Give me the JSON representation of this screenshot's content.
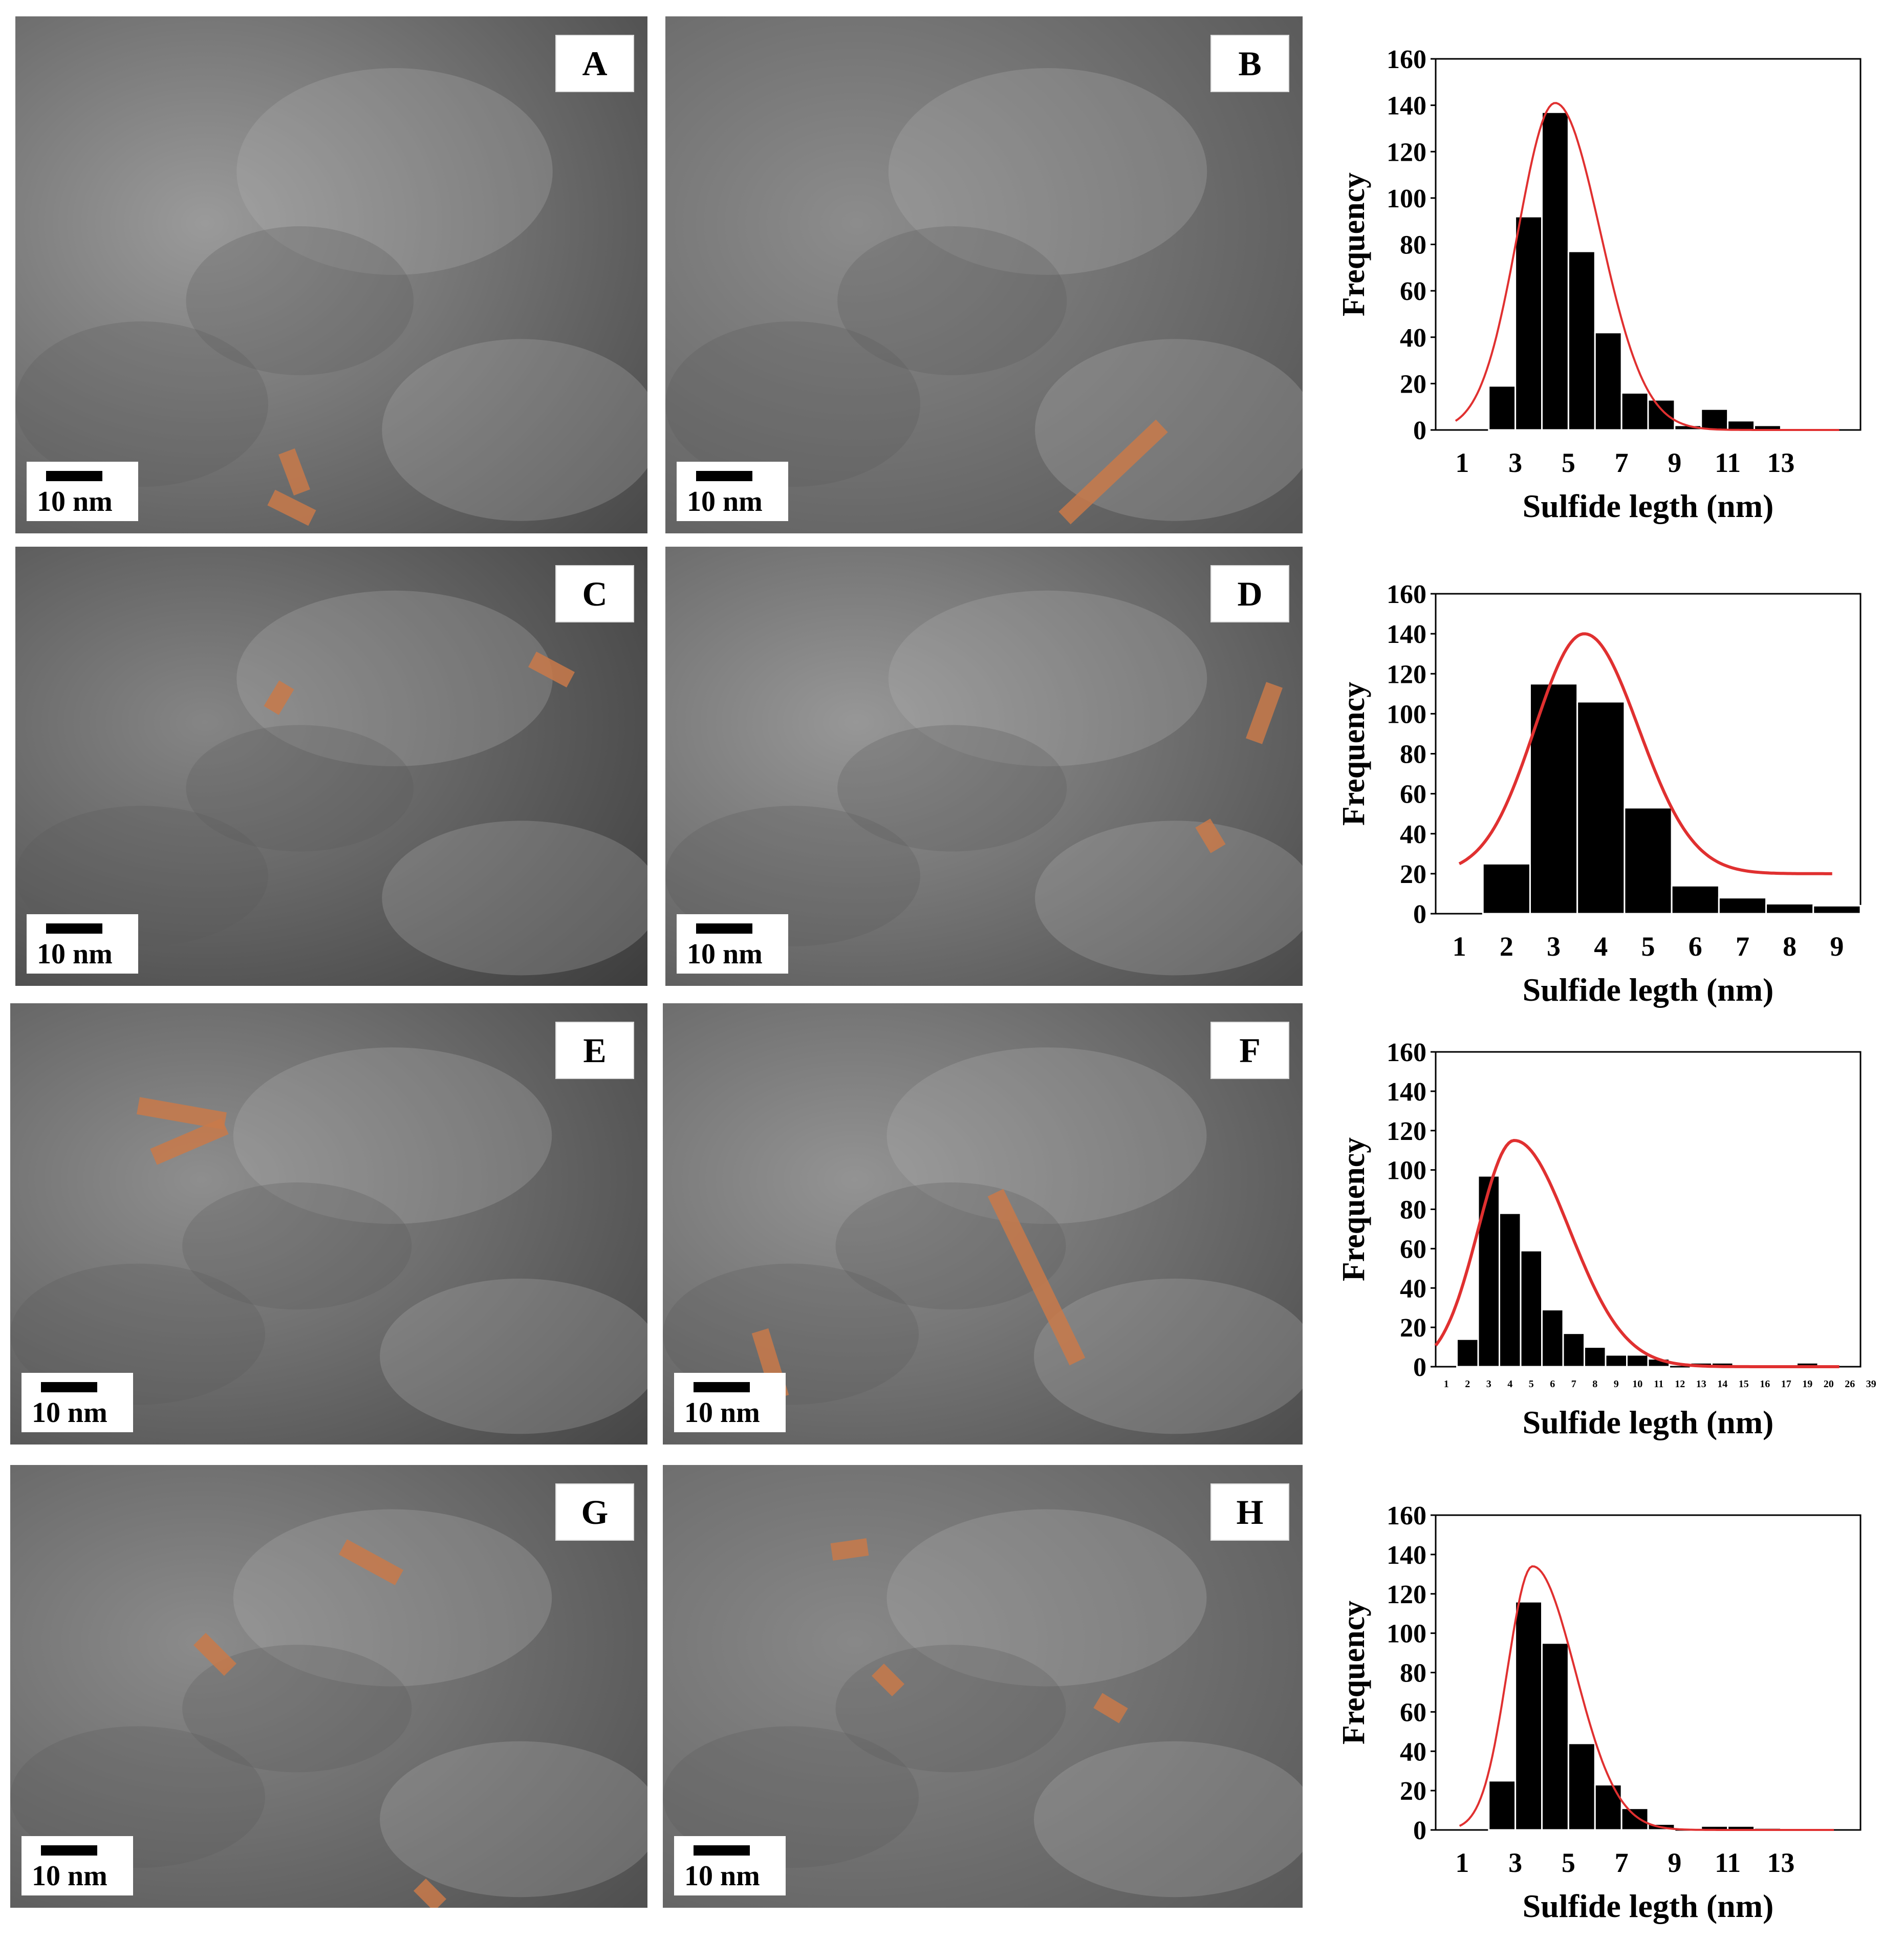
{
  "panels": [
    {
      "letter": "A",
      "scale": "10 nm",
      "tone": "#9a9a9a",
      "dark": "#4a4a4a"
    },
    {
      "letter": "B",
      "scale": "10 nm",
      "tone": "#8c8c8c",
      "dark": "#555555"
    },
    {
      "letter": "C",
      "scale": "10 nm",
      "tone": "#858585",
      "dark": "#3e3e3e"
    },
    {
      "letter": "D",
      "scale": "10 nm",
      "tone": "#979797",
      "dark": "#4c4c4c"
    },
    {
      "letter": "E",
      "scale": "10 nm",
      "tone": "#8e8e8e",
      "dark": "#474747"
    },
    {
      "letter": "F",
      "scale": "10 nm",
      "tone": "#939393",
      "dark": "#4f4f4f"
    },
    {
      "letter": "G",
      "scale": "10 nm",
      "tone": "#8b8b8b",
      "dark": "#505050"
    },
    {
      "letter": "H",
      "scale": "10 nm",
      "tone": "#888888",
      "dark": "#5a5a5a"
    }
  ],
  "highlight_color": "#c97a4a",
  "chart_data": [
    {
      "type": "bar",
      "ylabel": "Frequency",
      "xlabel": "Sulfide legth (nm)",
      "ylim": [
        0,
        160
      ],
      "yticks": [
        "0",
        "20",
        "40",
        "60",
        "80",
        "100",
        "120",
        "140",
        "160"
      ],
      "xrange": [
        0,
        16
      ],
      "xticks": [
        {
          "pos": 1,
          "label": "1"
        },
        {
          "pos": 3,
          "label": "3"
        },
        {
          "pos": 5,
          "label": "5"
        },
        {
          "pos": 7,
          "label": "7"
        },
        {
          "pos": 9,
          "label": "9"
        },
        {
          "pos": 11,
          "label": "11"
        },
        {
          "pos": 13,
          "label": "13"
        }
      ],
      "bar_color": "#000000",
      "curve_color": "#e03030",
      "bars": [
        {
          "x": 1.5,
          "w": 1,
          "value": 0
        },
        {
          "x": 2.5,
          "w": 1,
          "value": 19
        },
        {
          "x": 3.5,
          "w": 1,
          "value": 92
        },
        {
          "x": 4.5,
          "w": 1,
          "value": 137
        },
        {
          "x": 5.5,
          "w": 1,
          "value": 77
        },
        {
          "x": 6.5,
          "w": 1,
          "value": 42
        },
        {
          "x": 7.5,
          "w": 1,
          "value": 16
        },
        {
          "x": 8.5,
          "w": 1,
          "value": 13
        },
        {
          "x": 9.5,
          "w": 1,
          "value": 2
        },
        {
          "x": 10.5,
          "w": 1,
          "value": 9
        },
        {
          "x": 11.5,
          "w": 1,
          "value": 4
        },
        {
          "x": 12.5,
          "w": 1,
          "value": 2
        }
      ],
      "curve": {
        "x_start": 0.75,
        "x_end": 15.2,
        "peak": 141,
        "mu": 4.5,
        "sigma_left": 1.4,
        "sigma_right": 1.7,
        "baseline": 0
      }
    },
    {
      "type": "bar",
      "ylabel": "Frequency",
      "xlabel": "Sulfide legth (nm)",
      "ylim": [
        0,
        160
      ],
      "yticks": [
        "0",
        "20",
        "40",
        "60",
        "80",
        "100",
        "120",
        "140",
        "160"
      ],
      "xrange": [
        0.5,
        9.5
      ],
      "xticks": [
        {
          "pos": 1,
          "label": "1"
        },
        {
          "pos": 2,
          "label": "2"
        },
        {
          "pos": 3,
          "label": "3"
        },
        {
          "pos": 4,
          "label": "4"
        },
        {
          "pos": 5,
          "label": "5"
        },
        {
          "pos": 6,
          "label": "6"
        },
        {
          "pos": 7,
          "label": "7"
        },
        {
          "pos": 8,
          "label": "8"
        },
        {
          "pos": 9,
          "label": "9"
        }
      ],
      "bar_color": "#000000",
      "curve_color": "#e03030",
      "bars": [
        {
          "x": 1,
          "w": 1,
          "value": 0
        },
        {
          "x": 2,
          "w": 1,
          "value": 25
        },
        {
          "x": 3,
          "w": 1,
          "value": 115
        },
        {
          "x": 4,
          "w": 1,
          "value": 106
        },
        {
          "x": 5,
          "w": 1,
          "value": 53
        },
        {
          "x": 6,
          "w": 1,
          "value": 14
        },
        {
          "x": 7,
          "w": 1,
          "value": 8
        },
        {
          "x": 8,
          "w": 1,
          "value": 5
        },
        {
          "x": 9,
          "w": 1,
          "value": 4
        }
      ],
      "curve": {
        "x_start": 1,
        "x_end": 8.9,
        "peak": 140,
        "mu": 3.65,
        "sigma_left": 1.05,
        "sigma_right": 1.15,
        "baseline": 20
      }
    },
    {
      "type": "bar",
      "ylabel": "Frequency",
      "xlabel": "Sulfide legth (nm)",
      "ylim": [
        0,
        160
      ],
      "yticks": [
        "0",
        "20",
        "40",
        "60",
        "80",
        "100",
        "120",
        "140",
        "160"
      ],
      "xrange": [
        0.5,
        20.5
      ],
      "xticks": [
        {
          "pos": 1,
          "label": "1"
        },
        {
          "pos": 2,
          "label": "2"
        },
        {
          "pos": 3,
          "label": "3"
        },
        {
          "pos": 4,
          "label": "4"
        },
        {
          "pos": 5,
          "label": "5"
        },
        {
          "pos": 6,
          "label": "6"
        },
        {
          "pos": 7,
          "label": "7"
        },
        {
          "pos": 8,
          "label": "8"
        },
        {
          "pos": 9,
          "label": "9"
        },
        {
          "pos": 10,
          "label": "10"
        },
        {
          "pos": 11,
          "label": "11"
        },
        {
          "pos": 12,
          "label": "12"
        },
        {
          "pos": 13,
          "label": "13"
        },
        {
          "pos": 14,
          "label": "14"
        },
        {
          "pos": 15,
          "label": "15"
        },
        {
          "pos": 16,
          "label": "16"
        },
        {
          "pos": 17,
          "label": "17"
        },
        {
          "pos": 18,
          "label": "19"
        },
        {
          "pos": 19,
          "label": "20"
        },
        {
          "pos": 20,
          "label": "26"
        },
        {
          "pos": 21,
          "label": "39"
        }
      ],
      "bar_color": "#000000",
      "curve_color": "#e03030",
      "bars": [
        {
          "x": 2,
          "w": 1,
          "value": 14
        },
        {
          "x": 3,
          "w": 1,
          "value": 97
        },
        {
          "x": 4,
          "w": 1,
          "value": 78
        },
        {
          "x": 5,
          "w": 1,
          "value": 59
        },
        {
          "x": 6,
          "w": 1,
          "value": 29
        },
        {
          "x": 7,
          "w": 1,
          "value": 17
        },
        {
          "x": 8,
          "w": 1,
          "value": 10
        },
        {
          "x": 9,
          "w": 1,
          "value": 6
        },
        {
          "x": 10,
          "w": 1,
          "value": 6
        },
        {
          "x": 11,
          "w": 1,
          "value": 4
        },
        {
          "x": 13,
          "w": 1,
          "value": 2
        },
        {
          "x": 14,
          "w": 1,
          "value": 2
        },
        {
          "x": 18,
          "w": 1,
          "value": 2
        }
      ],
      "curve": {
        "x_start": 0.5,
        "x_end": 19.5,
        "peak": 115,
        "mu": 4.2,
        "sigma_left": 1.7,
        "sigma_right": 2.6,
        "baseline": 0
      }
    },
    {
      "type": "bar",
      "ylabel": "Frequency",
      "xlabel": "Sulfide legth (nm)",
      "ylim": [
        0,
        160
      ],
      "yticks": [
        "0",
        "20",
        "40",
        "60",
        "80",
        "100",
        "120",
        "140",
        "160"
      ],
      "xrange": [
        0,
        16
      ],
      "xticks": [
        {
          "pos": 1,
          "label": "1"
        },
        {
          "pos": 3,
          "label": "3"
        },
        {
          "pos": 5,
          "label": "5"
        },
        {
          "pos": 7,
          "label": "7"
        },
        {
          "pos": 9,
          "label": "9"
        },
        {
          "pos": 11,
          "label": "11"
        },
        {
          "pos": 13,
          "label": "13"
        }
      ],
      "bar_color": "#000000",
      "curve_color": "#e03030",
      "bars": [
        {
          "x": 1.5,
          "w": 1,
          "value": 0
        },
        {
          "x": 2.5,
          "w": 1,
          "value": 25
        },
        {
          "x": 3.5,
          "w": 1,
          "value": 116
        },
        {
          "x": 4.5,
          "w": 1,
          "value": 95
        },
        {
          "x": 5.5,
          "w": 1,
          "value": 44
        },
        {
          "x": 6.5,
          "w": 1,
          "value": 23
        },
        {
          "x": 7.5,
          "w": 1,
          "value": 11
        },
        {
          "x": 8.5,
          "w": 1,
          "value": 3
        },
        {
          "x": 9.5,
          "w": 1,
          "value": 0
        },
        {
          "x": 10.5,
          "w": 1,
          "value": 2
        },
        {
          "x": 11.5,
          "w": 1,
          "value": 2
        },
        {
          "x": 12.5,
          "w": 1,
          "value": 1
        }
      ],
      "curve": {
        "x_start": 0.9,
        "x_end": 15,
        "peak": 134,
        "mu": 3.65,
        "sigma_left": 0.95,
        "sigma_right": 1.6,
        "baseline": 0
      }
    }
  ]
}
